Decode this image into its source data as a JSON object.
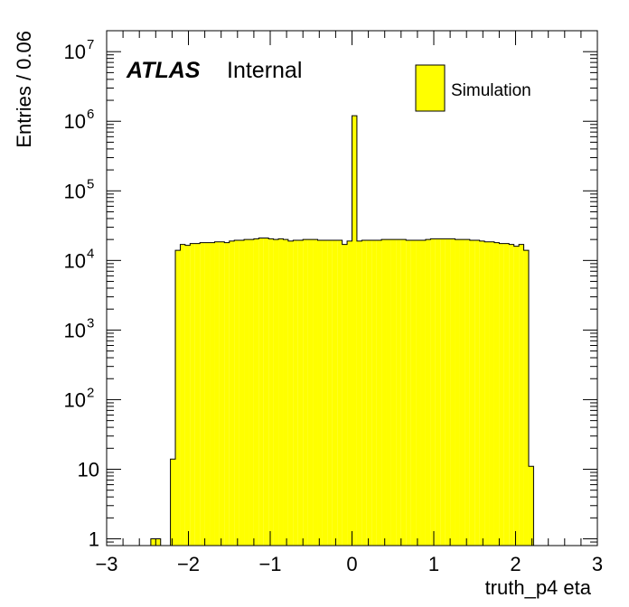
{
  "chart_data": {
    "type": "bar",
    "histogram": true,
    "experiment_label": "ATLAS",
    "status_label": "Internal",
    "xlabel": "truth_p4 eta",
    "ylabel": "Entries / 0.06",
    "xlim": [
      -3,
      3
    ],
    "ylim": [
      0.8,
      20000000
    ],
    "yscale": "log",
    "bin_width": 0.06,
    "x_ticks": [
      -3,
      -2,
      -1,
      0,
      1,
      2,
      3
    ],
    "x_tick_labels": [
      "−3",
      "−2",
      "−1",
      "0",
      "1",
      "2",
      "3"
    ],
    "y_ticks": [
      {
        "value": 1,
        "base": "1",
        "exp": ""
      },
      {
        "value": 10,
        "base": "10",
        "exp": ""
      },
      {
        "value": 100,
        "base": "10",
        "exp": "2"
      },
      {
        "value": 1000,
        "base": "10",
        "exp": "3"
      },
      {
        "value": 10000,
        "base": "10",
        "exp": "4"
      },
      {
        "value": 100000,
        "base": "10",
        "exp": "5"
      },
      {
        "value": 1000000,
        "base": "10",
        "exp": "6"
      },
      {
        "value": 10000000,
        "base": "10",
        "exp": "7"
      }
    ],
    "legend": {
      "position": "top-right",
      "entries": [
        {
          "label": "Simulation",
          "color": "#ffff00"
        }
      ]
    },
    "fill_color": "#ffff00",
    "line_color": "#000000",
    "series": [
      {
        "name": "Simulation",
        "bins": [
          {
            "x0": -2.46,
            "x1": -2.34,
            "y": 1
          },
          {
            "x0": -2.22,
            "x1": -2.16,
            "y": 14
          },
          {
            "x0": -2.16,
            "x1": -2.1,
            "y": 14000
          },
          {
            "x0": -2.1,
            "x1": -2.04,
            "y": 17000
          },
          {
            "x0": -2.04,
            "x1": -1.98,
            "y": 16500
          },
          {
            "x0": -1.98,
            "x1": -1.92,
            "y": 17500
          },
          {
            "x0": -1.92,
            "x1": -1.86,
            "y": 17500
          },
          {
            "x0": -1.86,
            "x1": -1.8,
            "y": 18000
          },
          {
            "x0": -1.8,
            "x1": -1.74,
            "y": 18000
          },
          {
            "x0": -1.74,
            "x1": -1.68,
            "y": 18000
          },
          {
            "x0": -1.68,
            "x1": -1.62,
            "y": 18500
          },
          {
            "x0": -1.62,
            "x1": -1.56,
            "y": 18500
          },
          {
            "x0": -1.56,
            "x1": -1.5,
            "y": 18000
          },
          {
            "x0": -1.5,
            "x1": -1.44,
            "y": 19000
          },
          {
            "x0": -1.44,
            "x1": -1.38,
            "y": 19500
          },
          {
            "x0": -1.38,
            "x1": -1.32,
            "y": 19500
          },
          {
            "x0": -1.32,
            "x1": -1.26,
            "y": 20000
          },
          {
            "x0": -1.26,
            "x1": -1.2,
            "y": 20000
          },
          {
            "x0": -1.2,
            "x1": -1.14,
            "y": 20500
          },
          {
            "x0": -1.14,
            "x1": -1.08,
            "y": 21000
          },
          {
            "x0": -1.08,
            "x1": -1.02,
            "y": 21000
          },
          {
            "x0": -1.02,
            "x1": -0.96,
            "y": 20500
          },
          {
            "x0": -0.96,
            "x1": -0.9,
            "y": 20000
          },
          {
            "x0": -0.9,
            "x1": -0.84,
            "y": 20500
          },
          {
            "x0": -0.84,
            "x1": -0.78,
            "y": 20000
          },
          {
            "x0": -0.78,
            "x1": -0.72,
            "y": 19000
          },
          {
            "x0": -0.72,
            "x1": -0.66,
            "y": 19500
          },
          {
            "x0": -0.66,
            "x1": -0.6,
            "y": 19500
          },
          {
            "x0": -0.6,
            "x1": -0.54,
            "y": 20000
          },
          {
            "x0": -0.54,
            "x1": -0.48,
            "y": 20000
          },
          {
            "x0": -0.48,
            "x1": -0.42,
            "y": 20000
          },
          {
            "x0": -0.42,
            "x1": -0.36,
            "y": 19500
          },
          {
            "x0": -0.36,
            "x1": -0.3,
            "y": 19500
          },
          {
            "x0": -0.3,
            "x1": -0.24,
            "y": 19500
          },
          {
            "x0": -0.24,
            "x1": -0.18,
            "y": 19500
          },
          {
            "x0": -0.18,
            "x1": -0.12,
            "y": 19500
          },
          {
            "x0": -0.12,
            "x1": -0.06,
            "y": 17000
          },
          {
            "x0": -0.06,
            "x1": 0.0,
            "y": 19000
          },
          {
            "x0": 0.0,
            "x1": 0.06,
            "y": 1200000
          },
          {
            "x0": 0.06,
            "x1": 0.12,
            "y": 19000
          },
          {
            "x0": 0.12,
            "x1": 0.18,
            "y": 19500
          },
          {
            "x0": 0.18,
            "x1": 0.24,
            "y": 19500
          },
          {
            "x0": 0.24,
            "x1": 0.3,
            "y": 19500
          },
          {
            "x0": 0.3,
            "x1": 0.36,
            "y": 19500
          },
          {
            "x0": 0.36,
            "x1": 0.42,
            "y": 20000
          },
          {
            "x0": 0.42,
            "x1": 0.48,
            "y": 20000
          },
          {
            "x0": 0.48,
            "x1": 0.54,
            "y": 20000
          },
          {
            "x0": 0.54,
            "x1": 0.6,
            "y": 20000
          },
          {
            "x0": 0.6,
            "x1": 0.66,
            "y": 20000
          },
          {
            "x0": 0.66,
            "x1": 0.72,
            "y": 19500
          },
          {
            "x0": 0.72,
            "x1": 0.78,
            "y": 19500
          },
          {
            "x0": 0.78,
            "x1": 0.84,
            "y": 19500
          },
          {
            "x0": 0.84,
            "x1": 0.9,
            "y": 19500
          },
          {
            "x0": 0.9,
            "x1": 0.96,
            "y": 20000
          },
          {
            "x0": 0.96,
            "x1": 1.02,
            "y": 20500
          },
          {
            "x0": 1.02,
            "x1": 1.08,
            "y": 20500
          },
          {
            "x0": 1.08,
            "x1": 1.14,
            "y": 20500
          },
          {
            "x0": 1.14,
            "x1": 1.2,
            "y": 20500
          },
          {
            "x0": 1.2,
            "x1": 1.26,
            "y": 20500
          },
          {
            "x0": 1.26,
            "x1": 1.32,
            "y": 20000
          },
          {
            "x0": 1.32,
            "x1": 1.38,
            "y": 20000
          },
          {
            "x0": 1.38,
            "x1": 1.44,
            "y": 20000
          },
          {
            "x0": 1.44,
            "x1": 1.5,
            "y": 19500
          },
          {
            "x0": 1.5,
            "x1": 1.56,
            "y": 19500
          },
          {
            "x0": 1.56,
            "x1": 1.62,
            "y": 19000
          },
          {
            "x0": 1.62,
            "x1": 1.68,
            "y": 18500
          },
          {
            "x0": 1.68,
            "x1": 1.74,
            "y": 18500
          },
          {
            "x0": 1.74,
            "x1": 1.8,
            "y": 18000
          },
          {
            "x0": 1.8,
            "x1": 1.86,
            "y": 17500
          },
          {
            "x0": 1.86,
            "x1": 1.92,
            "y": 17500
          },
          {
            "x0": 1.92,
            "x1": 1.98,
            "y": 17000
          },
          {
            "x0": 1.98,
            "x1": 2.04,
            "y": 16000
          },
          {
            "x0": 2.04,
            "x1": 2.1,
            "y": 17000
          },
          {
            "x0": 2.1,
            "x1": 2.16,
            "y": 14000
          },
          {
            "x0": 2.16,
            "x1": 2.22,
            "y": 11
          }
        ]
      }
    ]
  }
}
